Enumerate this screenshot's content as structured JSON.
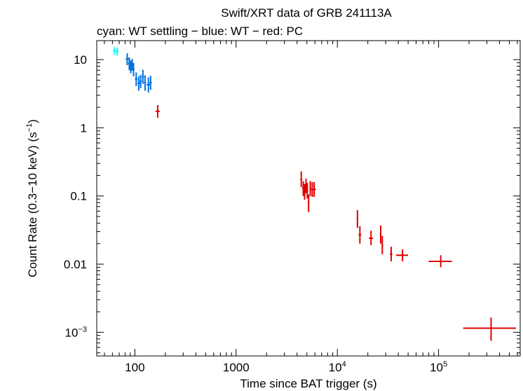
{
  "chart_data": {
    "type": "scatter",
    "title": "Swift/XRT data of GRB 241113A",
    "subtitle": "cyan: WT settling − blue: WT − red: PC",
    "xlabel": "Time since BAT trigger (s)",
    "ylabel": "Count Rate (0.3−10 keV) (s",
    "ylabel_sup": "−1",
    "ylabel_end": ")",
    "x_scale": "log",
    "y_scale": "log",
    "xlim": [
      42,
      640000
    ],
    "ylim": [
      0.00045,
      19
    ],
    "x_ticks": [
      {
        "value": 100,
        "label": "100",
        "sup": ""
      },
      {
        "value": 1000,
        "label": "1000",
        "sup": ""
      },
      {
        "value": 10000,
        "label": "10",
        "sup": "4"
      },
      {
        "value": 100000,
        "label": "10",
        "sup": "5"
      }
    ],
    "y_ticks": [
      {
        "value": 10,
        "label": "10",
        "sup": ""
      },
      {
        "value": 1,
        "label": "1",
        "sup": ""
      },
      {
        "value": 0.1,
        "label": "0.1",
        "sup": ""
      },
      {
        "value": 0.01,
        "label": "0.01",
        "sup": ""
      },
      {
        "value": 0.001,
        "label": "10",
        "sup": "−3"
      }
    ],
    "grid": false,
    "series": [
      {
        "color": "#00ffff",
        "points": [
          {
            "x": 63,
            "y": 13.5,
            "xlo": 61,
            "xhi": 65,
            "ylo": 11.8,
            "yhi": 15.3
          },
          {
            "x": 67,
            "y": 13.2,
            "xlo": 65,
            "xhi": 69,
            "ylo": 11.5,
            "yhi": 15.0
          }
        ]
      },
      {
        "color": "#0070e0",
        "points": [
          {
            "x": 84,
            "y": 10.2,
            "xlo": 81,
            "xhi": 87,
            "ylo": 8.3,
            "yhi": 12.4
          },
          {
            "x": 88,
            "y": 8.8,
            "xlo": 86,
            "xhi": 90,
            "ylo": 7.0,
            "yhi": 10.8
          },
          {
            "x": 91,
            "y": 7.9,
            "xlo": 89,
            "xhi": 93,
            "ylo": 6.3,
            "yhi": 9.7
          },
          {
            "x": 94,
            "y": 8.5,
            "xlo": 92,
            "xhi": 96,
            "ylo": 6.9,
            "yhi": 10.3
          },
          {
            "x": 97,
            "y": 7.2,
            "xlo": 95,
            "xhi": 99,
            "ylo": 5.7,
            "yhi": 8.9
          },
          {
            "x": 103,
            "y": 5.2,
            "xlo": 100,
            "xhi": 106,
            "ylo": 4.1,
            "yhi": 6.5
          },
          {
            "x": 109,
            "y": 4.5,
            "xlo": 106,
            "xhi": 112,
            "ylo": 3.5,
            "yhi": 5.7
          },
          {
            "x": 114,
            "y": 4.8,
            "xlo": 111,
            "xhi": 117,
            "ylo": 3.8,
            "yhi": 6.0
          },
          {
            "x": 120,
            "y": 5.6,
            "xlo": 117,
            "xhi": 123,
            "ylo": 4.4,
            "yhi": 7.1
          },
          {
            "x": 126,
            "y": 4.6,
            "xlo": 123,
            "xhi": 129,
            "ylo": 3.5,
            "yhi": 5.9
          },
          {
            "x": 136,
            "y": 4.3,
            "xlo": 130,
            "xhi": 143,
            "ylo": 3.3,
            "yhi": 5.5
          },
          {
            "x": 143,
            "y": 4.6,
            "xlo": 139,
            "xhi": 147,
            "ylo": 3.6,
            "yhi": 5.8
          }
        ]
      },
      {
        "color": "#e00000",
        "points": [
          {
            "x": 168,
            "y": 1.75,
            "xlo": 160,
            "xhi": 176,
            "ylo": 1.4,
            "yhi": 2.15
          },
          {
            "x": 4400,
            "y": 0.175,
            "xlo": 4300,
            "xhi": 4500,
            "ylo": 0.135,
            "yhi": 0.23
          },
          {
            "x": 4600,
            "y": 0.13,
            "xlo": 4500,
            "xhi": 4700,
            "ylo": 0.1,
            "yhi": 0.165
          },
          {
            "x": 4750,
            "y": 0.115,
            "xlo": 4650,
            "xhi": 4850,
            "ylo": 0.088,
            "yhi": 0.15
          },
          {
            "x": 4900,
            "y": 0.14,
            "xlo": 4800,
            "xhi": 5000,
            "ylo": 0.11,
            "yhi": 0.18
          },
          {
            "x": 5050,
            "y": 0.12,
            "xlo": 4950,
            "xhi": 5150,
            "ylo": 0.092,
            "yhi": 0.155
          },
          {
            "x": 5200,
            "y": 0.08,
            "xlo": 5100,
            "xhi": 5300,
            "ylo": 0.058,
            "yhi": 0.105
          },
          {
            "x": 5400,
            "y": 0.13,
            "xlo": 5300,
            "xhi": 5500,
            "ylo": 0.1,
            "yhi": 0.165
          },
          {
            "x": 5650,
            "y": 0.125,
            "xlo": 5500,
            "xhi": 5800,
            "ylo": 0.097,
            "yhi": 0.16
          },
          {
            "x": 5900,
            "y": 0.125,
            "xlo": 5800,
            "xhi": 6150,
            "ylo": 0.097,
            "yhi": 0.16
          },
          {
            "x": 15800,
            "y": 0.046,
            "xlo": 15500,
            "xhi": 16100,
            "ylo": 0.034,
            "yhi": 0.062
          },
          {
            "x": 16700,
            "y": 0.027,
            "xlo": 16200,
            "xhi": 17200,
            "ylo": 0.02,
            "yhi": 0.036
          },
          {
            "x": 21500,
            "y": 0.024,
            "xlo": 20500,
            "xhi": 22500,
            "ylo": 0.019,
            "yhi": 0.031
          },
          {
            "x": 26800,
            "y": 0.027,
            "xlo": 26300,
            "xhi": 27300,
            "ylo": 0.02,
            "yhi": 0.037
          },
          {
            "x": 27800,
            "y": 0.019,
            "xlo": 27300,
            "xhi": 28300,
            "ylo": 0.014,
            "yhi": 0.026
          },
          {
            "x": 34000,
            "y": 0.014,
            "xlo": 33000,
            "xhi": 35000,
            "ylo": 0.011,
            "yhi": 0.018
          },
          {
            "x": 44000,
            "y": 0.0135,
            "xlo": 38000,
            "xhi": 50000,
            "ylo": 0.011,
            "yhi": 0.0165
          },
          {
            "x": 105000,
            "y": 0.011,
            "xlo": 80000,
            "xhi": 135000,
            "ylo": 0.009,
            "yhi": 0.0135
          },
          {
            "x": 330000,
            "y": 0.00115,
            "xlo": 175000,
            "xhi": 580000,
            "ylo": 0.00075,
            "yhi": 0.00165
          }
        ]
      }
    ]
  }
}
